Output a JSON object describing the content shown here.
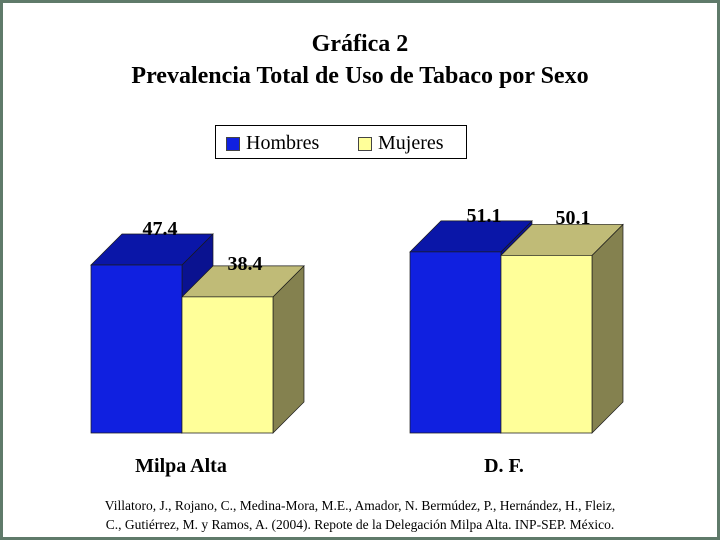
{
  "title_line1": "Gráfica 2",
  "title_line2": "Prevalencia Total de Uso de Tabaco por Sexo",
  "legend": [
    {
      "label": "Hombres",
      "color": "#1020e0"
    },
    {
      "label": "Mujeres",
      "color": "#ffff99"
    }
  ],
  "source_line1": "Villatoro, J., Rojano, C., Medina-Mora, M.E., Amador, N. Bermúdez, P., Hernández, H., Fleiz,",
  "source_line2": "C., Gutiérrez, M. y Ramos, A. (2004). Repote de la Delegación Milpa Alta. INP-SEP. México.",
  "chart_data": {
    "type": "bar",
    "categories": [
      "Milpa Alta",
      "D. F."
    ],
    "series": [
      {
        "name": "Hombres",
        "values": [
          47.4,
          51.1
        ],
        "color": "#1020e0"
      },
      {
        "name": "Mujeres",
        "values": [
          38.4,
          50.1
        ],
        "color": "#ffff99"
      }
    ],
    "data_labels": [
      "47.4",
      "38.4",
      "51.1",
      "50.1"
    ],
    "ylim": [
      0,
      60
    ],
    "style": "3d",
    "legend_position": "top-center",
    "grid": false
  }
}
